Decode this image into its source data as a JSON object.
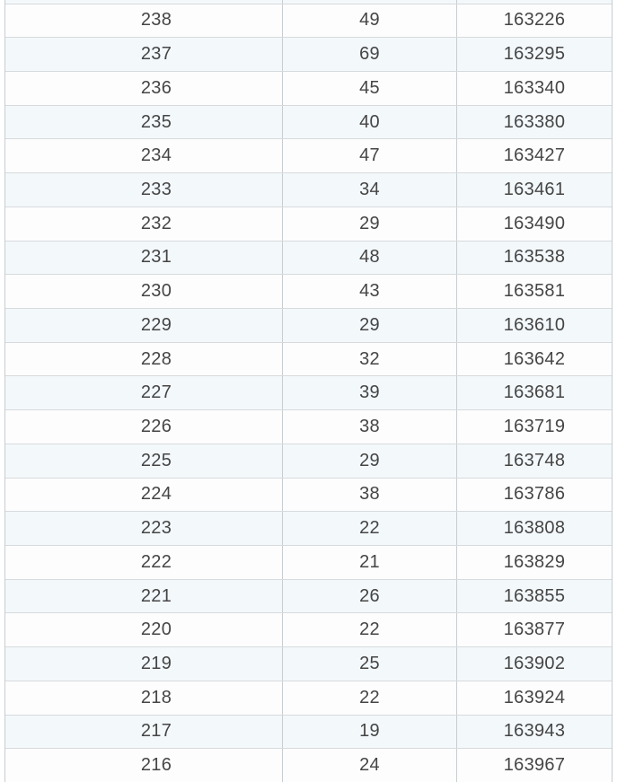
{
  "chart_data": {
    "type": "table",
    "rows": [
      [
        238,
        49,
        163226
      ],
      [
        237,
        69,
        163295
      ],
      [
        236,
        45,
        163340
      ],
      [
        235,
        40,
        163380
      ],
      [
        234,
        47,
        163427
      ],
      [
        233,
        34,
        163461
      ],
      [
        232,
        29,
        163490
      ],
      [
        231,
        48,
        163538
      ],
      [
        230,
        43,
        163581
      ],
      [
        229,
        29,
        163610
      ],
      [
        228,
        32,
        163642
      ],
      [
        227,
        39,
        163681
      ],
      [
        226,
        38,
        163719
      ],
      [
        225,
        29,
        163748
      ],
      [
        224,
        38,
        163786
      ],
      [
        223,
        22,
        163808
      ],
      [
        222,
        21,
        163829
      ],
      [
        221,
        26,
        163855
      ],
      [
        220,
        22,
        163877
      ],
      [
        219,
        25,
        163902
      ],
      [
        218,
        22,
        163924
      ],
      [
        217,
        19,
        163943
      ],
      [
        216,
        24,
        163967
      ]
    ]
  },
  "colors": {
    "row_base": "#fdfdfe",
    "row_alt": "#f3f8fb",
    "border_h": "#d7dadc",
    "border_v": "#c8cdd1",
    "text": "#454545"
  }
}
